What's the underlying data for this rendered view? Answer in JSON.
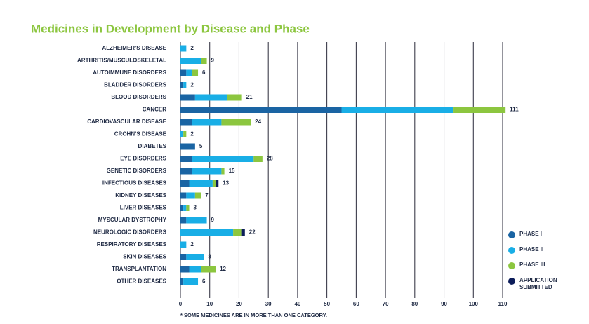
{
  "chart_data": {
    "type": "stacked-barh",
    "title": "Medicines in Development by Disease and Phase",
    "footnote": "* SOME MEDICINES ARE IN MORE THAN ONE CATEGORY.",
    "categories": [
      "ALZHEIMER’S DISEASE",
      "ARTHRITIS/MUSCULOSKELETAL",
      "AUTOIMMUNE DISORDERS",
      "BLADDER DISORDERS",
      "BLOOD DISORDERS",
      "CANCER",
      "CARDIOVASCULAR DISEASE",
      "CROHN’S DISEASE",
      "DIABETES",
      "EYE DISORDERS",
      "GENETIC DISORDERS",
      "INFECTIOUS DISEASES",
      "KIDNEY DISEASES",
      "LIVER DISEASES",
      "MYSCULAR DYSTROPHY",
      "NEUROLOGIC DISORDERS",
      "RESPIRATORY DISEASES",
      "SKIN DISEASES",
      "TRANSPLANTATION",
      "OTHER DISEASES"
    ],
    "series": [
      {
        "name": "PHASE I",
        "color": "#1a64a3",
        "values": [
          0,
          0,
          2,
          1,
          5,
          55,
          4,
          0,
          5,
          4,
          4,
          3,
          2,
          1,
          2,
          0,
          0,
          2,
          3,
          1
        ]
      },
      {
        "name": "PHASE II",
        "color": "#19aee6",
        "values": [
          2,
          7,
          2,
          1,
          11,
          38,
          10,
          1,
          0,
          21,
          10,
          8,
          3,
          1,
          7,
          18,
          2,
          6,
          4,
          5
        ]
      },
      {
        "name": "PHASE III",
        "color": "#8cc63f",
        "values": [
          0,
          2,
          2,
          0,
          5,
          18,
          10,
          1,
          0,
          3,
          1,
          1,
          2,
          1,
          0,
          3,
          0,
          0,
          5,
          0
        ]
      },
      {
        "name": "APPLICATION SUBMITTED",
        "color": "#0c1d5a",
        "values": [
          0,
          0,
          0,
          0,
          0,
          0,
          0,
          0,
          0,
          0,
          0,
          1,
          0,
          0,
          0,
          1,
          0,
          0,
          0,
          0
        ]
      }
    ],
    "totals": [
      2,
      9,
      6,
      2,
      21,
      111,
      24,
      2,
      5,
      28,
      15,
      13,
      7,
      3,
      9,
      22,
      2,
      8,
      12,
      6
    ],
    "xlim": [
      0,
      110
    ],
    "xticks": [
      0,
      10,
      20,
      30,
      40,
      50,
      60,
      70,
      80,
      90,
      100,
      110
    ],
    "grid": true
  }
}
